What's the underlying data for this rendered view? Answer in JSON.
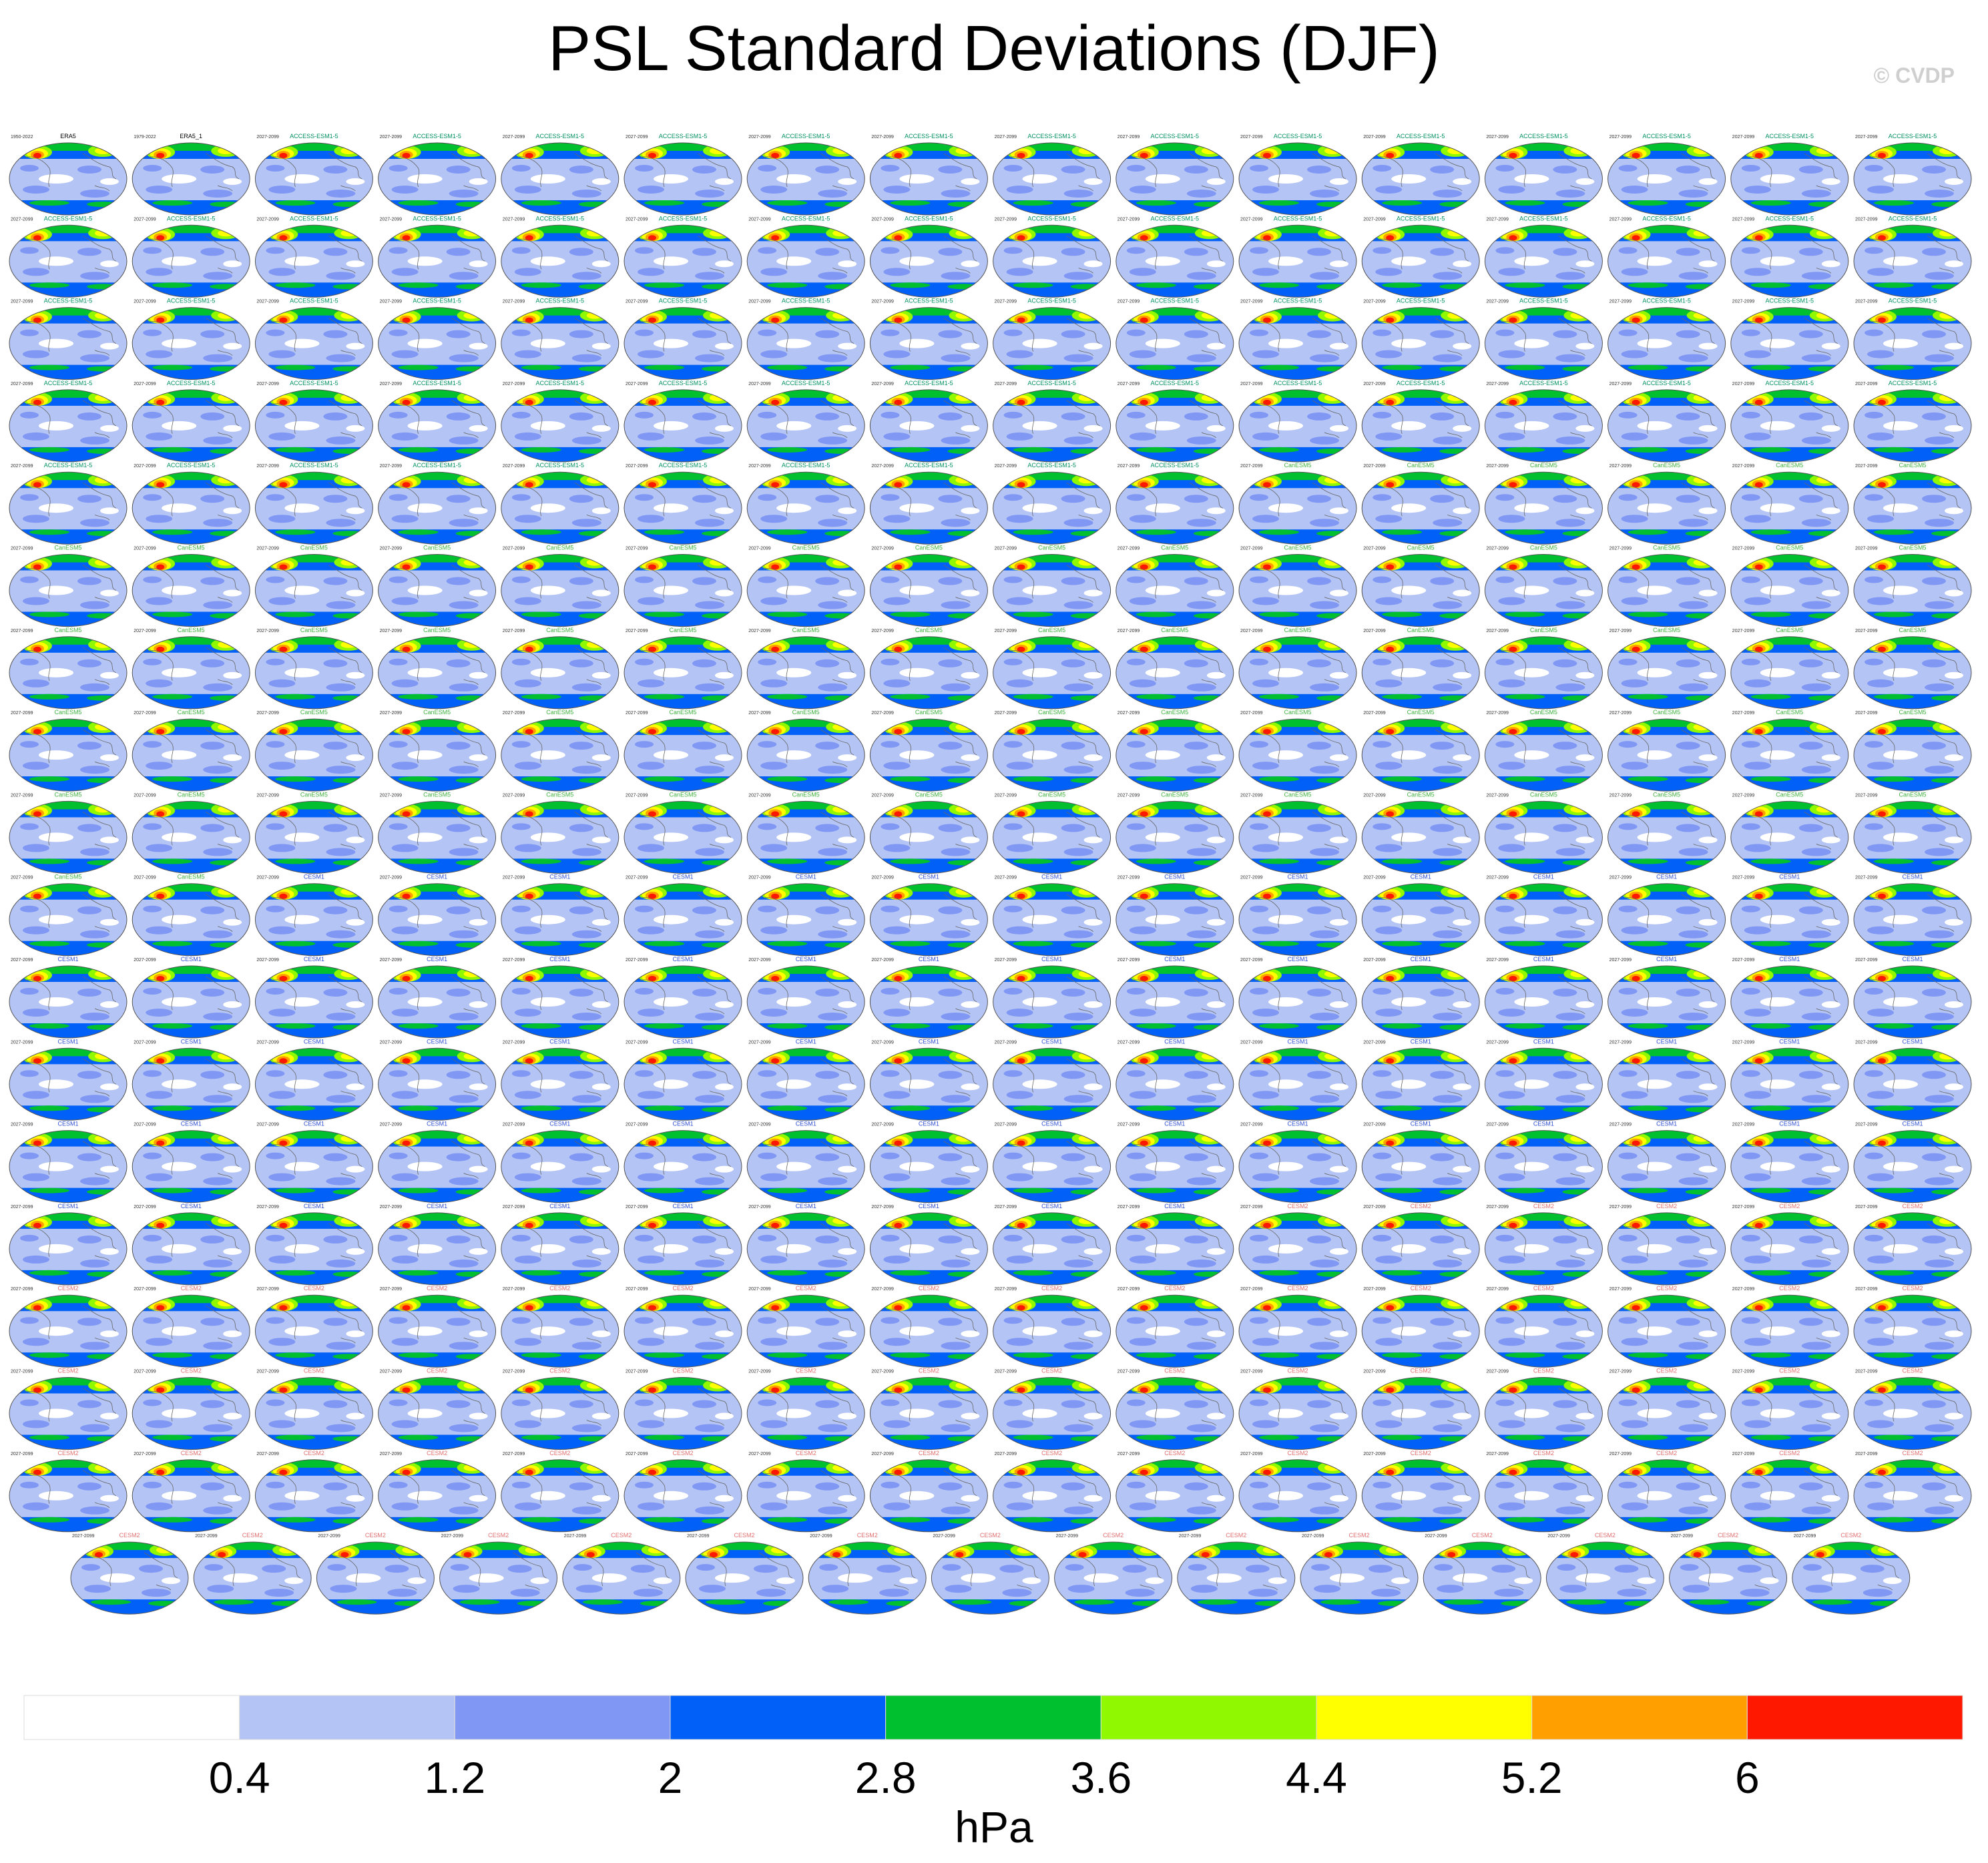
{
  "title": "PSL Standard Deviations (DJF)",
  "watermark": "© CVDP",
  "chart_data": {
    "type": "heatmap",
    "title": "PSL Standard Deviations (DJF)",
    "description_of_layout": "small-multiples grid of global maps",
    "units": "hPa",
    "colorbar": {
      "levels": [
        0.4,
        1.2,
        2,
        2.8,
        3.6,
        4.4,
        5.2,
        6
      ],
      "tick_labels": [
        "0.4",
        "1.2",
        "2",
        "2.8",
        "3.6",
        "4.4",
        "5.2",
        "6"
      ],
      "colors": [
        "#ffffff",
        "#b4c4f4",
        "#8098f4",
        "#0060f8",
        "#00c030",
        "#90f800",
        "#ffff00",
        "#ffa000",
        "#ff1800"
      ]
    },
    "panel_counts": {
      "full_rows": 17,
      "panels_per_full_row": 16,
      "last_row_panels": 15
    },
    "panels_header": [
      {
        "name": "ERA5",
        "years": "1950-2022"
      },
      {
        "name": "ERA5_1",
        "years": "1979-2022"
      }
    ],
    "model_families": [
      "ACCESS-ESM1-5",
      "CanESM5",
      "CESM1",
      "CESM2"
    ],
    "panel_period": "2027-2099"
  },
  "colors": {
    "panel_title_obs": "#000000",
    "panel_title_access": "#009060",
    "panel_title_canesm": "#40b040",
    "panel_title_cesm1": "#3050d0",
    "panel_title_cesm2": "#e07070"
  }
}
